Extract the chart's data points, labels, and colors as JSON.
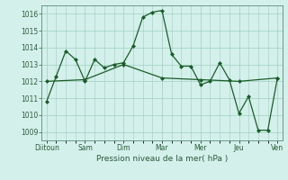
{
  "title": "",
  "xlabel": "Pression niveau de la mer( hPa )",
  "ylabel": "",
  "bg_color": "#d4f0eb",
  "grid_color": "#9ecfbf",
  "line_color": "#1a5c2a",
  "marker_color": "#1a5c2a",
  "ylim": [
    1008.5,
    1016.5
  ],
  "yticks": [
    1009,
    1010,
    1011,
    1012,
    1013,
    1014,
    1015,
    1016
  ],
  "day_labels": [
    "Diitoun",
    "Sam",
    "Dim",
    "Mar",
    "Mer",
    "Jeu",
    "Ven"
  ],
  "day_positions": [
    0,
    4,
    8,
    12,
    16,
    20,
    24
  ],
  "series1_x": [
    0,
    1,
    2,
    3,
    4,
    5,
    6,
    7,
    8,
    9,
    10,
    11,
    12,
    13,
    14,
    15,
    16,
    17,
    18,
    19,
    20,
    21,
    22,
    23,
    24
  ],
  "series1_y": [
    1010.8,
    1012.3,
    1013.8,
    1013.3,
    1012.0,
    1013.3,
    1012.8,
    1013.0,
    1013.1,
    1014.1,
    1015.8,
    1016.1,
    1016.2,
    1013.6,
    1012.9,
    1012.9,
    1011.8,
    1012.0,
    1013.1,
    1012.1,
    1010.1,
    1011.1,
    1009.1,
    1009.1,
    1012.2
  ],
  "series2_x": [
    0,
    4,
    8,
    12,
    16,
    20,
    24
  ],
  "series2_y": [
    1012.0,
    1012.1,
    1013.0,
    1012.2,
    1012.1,
    1012.0,
    1012.2
  ]
}
